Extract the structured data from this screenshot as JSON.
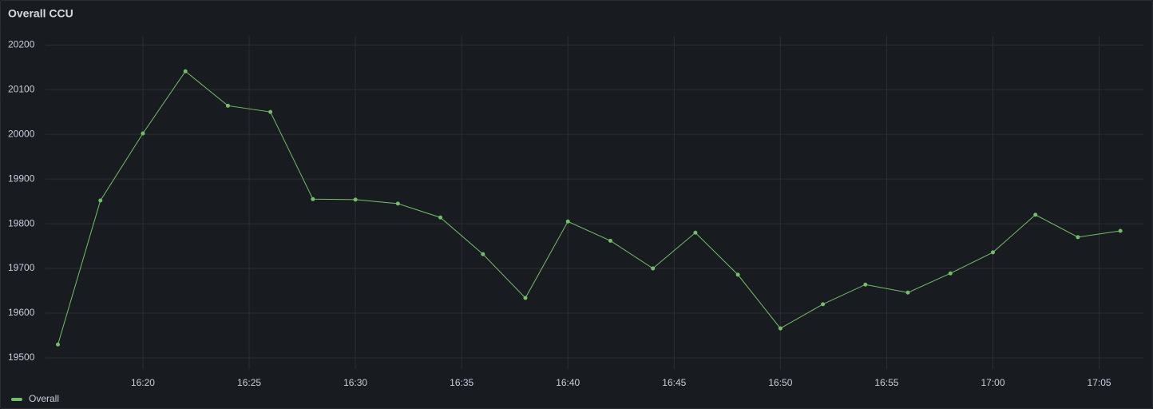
{
  "chart_data": {
    "type": "line",
    "title": "Overall CCU",
    "x": [
      "16:16",
      "16:18",
      "16:20",
      "16:22",
      "16:24",
      "16:26",
      "16:28",
      "16:30",
      "16:32",
      "16:34",
      "16:36",
      "16:38",
      "16:40",
      "16:42",
      "16:44",
      "16:46",
      "16:48",
      "16:50",
      "16:52",
      "16:54",
      "16:56",
      "16:58",
      "17:00",
      "17:02",
      "17:04",
      "17:06"
    ],
    "series": [
      {
        "name": "Overall",
        "color": "#73bf69",
        "values": [
          19530,
          19852,
          20002,
          20141,
          20064,
          20050,
          19855,
          19854,
          19845,
          19814,
          19732,
          19634,
          19805,
          19762,
          19700,
          19780,
          19686,
          19566,
          19620,
          19664,
          19646,
          19689,
          19736,
          19820,
          19770,
          19784
        ]
      }
    ],
    "xlim": [
      "16:15:25",
      "17:07:05"
    ],
    "xticks": [
      "16:20",
      "16:25",
      "16:30",
      "16:35",
      "16:40",
      "16:45",
      "16:50",
      "16:55",
      "17:00",
      "17:05"
    ],
    "ylim": [
      19475,
      20220
    ],
    "yticks": [
      19500,
      19600,
      19700,
      19800,
      19900,
      20000,
      20100,
      20200
    ],
    "grid": true,
    "legend": "bottom-left"
  }
}
